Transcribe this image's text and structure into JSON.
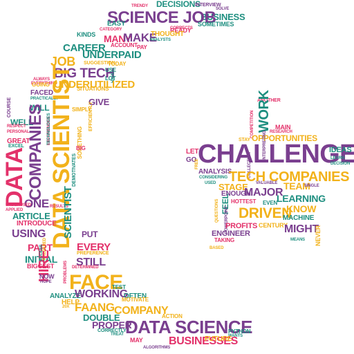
{
  "words": [
    {
      "t": "DECISIONS",
      "c": 3
    },
    {
      "t": "TRENDY",
      "c": 2
    },
    {
      "t": "INTERVIEW",
      "c": 0
    },
    {
      "t": "SOLVE",
      "c": 0
    },
    {
      "t": "BUSINESS",
      "c": 3
    },
    {
      "t": "SCIENCE JOB",
      "c": 0
    },
    {
      "t": "SOMETIMES",
      "c": 3
    },
    {
      "t": "EASY",
      "c": 3
    },
    {
      "t": "CATEGORY",
      "c": 2
    },
    {
      "t": "CORRECTS",
      "c": 2
    },
    {
      "t": "READY",
      "c": 2
    },
    {
      "t": "KINDS",
      "c": 3
    },
    {
      "t": "MANY",
      "c": 2
    },
    {
      "t": "MAKE",
      "c": 0
    },
    {
      "t": "THOUGHT",
      "c": 1
    },
    {
      "t": "ANALYSTS",
      "c": 3
    },
    {
      "t": "ACCOUNT",
      "c": 2
    },
    {
      "t": "PAY",
      "c": 2
    },
    {
      "t": "CAREER",
      "c": 3
    },
    {
      "t": "UNDERPAID",
      "c": 3
    },
    {
      "t": "JOB",
      "c": 1
    },
    {
      "t": "SUGGESTION",
      "c": 1
    },
    {
      "t": "TODAY",
      "c": 1
    },
    {
      "t": "BIG TECH",
      "c": 0
    },
    {
      "t": "USE",
      "c": 3
    },
    {
      "t": "HAVE",
      "c": 3
    },
    {
      "t": "ALWAYS",
      "c": 2
    },
    {
      "t": "EVERYTHING",
      "c": 2
    },
    {
      "t": "UNDERUTILIZED",
      "c": 1
    },
    {
      "t": "GOING",
      "c": 1
    },
    {
      "t": "LOT",
      "c": 3
    },
    {
      "t": "SITUATIONS",
      "c": 1
    },
    {
      "t": "FACED",
      "c": 0
    },
    {
      "t": "PRACTICALLY",
      "c": 3
    },
    {
      "t": "GIVE",
      "c": 0
    },
    {
      "t": "WILL",
      "c": 3
    },
    {
      "t": "SIMPLY",
      "c": 1
    },
    {
      "t": "COURSE",
      "c": 0
    },
    {
      "t": "WELL",
      "c": 3
    },
    {
      "t": "RESPECT",
      "c": 2
    },
    {
      "t": "PERSONAL",
      "c": 2
    },
    {
      "t": "EXPERIENCES",
      "c": 2
    },
    {
      "t": "TECHNOLOGIES",
      "c": 3
    },
    {
      "t": "DATA SCIENTIST",
      "c": 1
    },
    {
      "t": "EFFICIENTLY",
      "c": 1
    },
    {
      "t": "SOMETHING",
      "c": 1
    },
    {
      "t": "GREAT",
      "c": 2
    },
    {
      "t": "EXCEL",
      "c": 3
    },
    {
      "t": "BIG",
      "c": 2
    },
    {
      "t": "DATA",
      "c": 2
    },
    {
      "t": "COMPANIES",
      "c": 0
    },
    {
      "t": "DEMOTIVATES",
      "c": 3
    },
    {
      "t": "ONE",
      "c": 0
    },
    {
      "t": "UNDERUSED",
      "c": 2
    },
    {
      "t": "APPLIED",
      "c": 2
    },
    {
      "t": "RESULTS",
      "c": 2
    },
    {
      "t": "ARTICLE",
      "c": 3
    },
    {
      "t": "INTRODUCE",
      "c": 2
    },
    {
      "t": "SCIENTIST",
      "c": 3
    },
    {
      "t": "USING",
      "c": 0
    },
    {
      "t": "PUT",
      "c": 0
    },
    {
      "t": "PART",
      "c": 2
    },
    {
      "t": "EVERY",
      "c": 2
    },
    {
      "t": "INITIAL",
      "c": 3
    },
    {
      "t": "PREPARED",
      "c": 1
    },
    {
      "t": "HIRE",
      "c": 2
    },
    {
      "t": "PREFERENCE",
      "c": 1
    },
    {
      "t": "STILL",
      "c": 0
    },
    {
      "t": "BIGGEST",
      "c": 2
    },
    {
      "t": "NOW",
      "c": 0
    },
    {
      "t": "HOPE",
      "c": 0
    },
    {
      "t": "ACCESS",
      "c": 3
    },
    {
      "t": "PROBLEMS",
      "c": 2
    },
    {
      "t": "DETERMINED",
      "c": 2
    },
    {
      "t": "FACE",
      "c": 1
    },
    {
      "t": "TEST",
      "c": 3
    },
    {
      "t": "ANALYZE",
      "c": 3
    },
    {
      "t": "WORKING",
      "c": 0
    },
    {
      "t": "OFTEN",
      "c": 3
    },
    {
      "t": "HELP",
      "c": 1
    },
    {
      "t": "MOTIVATE",
      "c": 1
    },
    {
      "t": "20X",
      "c": 1
    },
    {
      "t": "FAANG",
      "c": 1
    },
    {
      "t": "COMPANY",
      "c": 1
    },
    {
      "t": "DOUBLE",
      "c": 3
    },
    {
      "t": "ACTION",
      "c": 1
    },
    {
      "t": "PROPER",
      "c": 0
    },
    {
      "t": "CORRECTLY",
      "c": 3
    },
    {
      "t": "TREAT",
      "c": 3
    },
    {
      "t": "DATA SCIENCE",
      "c": 0
    },
    {
      "t": "PYTHON",
      "c": 3
    },
    {
      "t": "WANTS",
      "c": 3
    },
    {
      "t": "MAY",
      "c": 2
    },
    {
      "t": "BUSINESSES",
      "c": 2
    },
    {
      "t": "FUTURE",
      "c": 1
    },
    {
      "t": "ALGORITHMS",
      "c": 0
    },
    {
      "t": "ANOTHER",
      "c": 2
    },
    {
      "t": "WORK",
      "c": 3
    },
    {
      "t": "MAIN",
      "c": 2
    },
    {
      "t": "RESEARCH",
      "c": 2
    },
    {
      "t": "COMPETITION",
      "c": 2
    },
    {
      "t": "OPPORTUNITIES",
      "c": 1
    },
    {
      "t": "STAY",
      "c": 1
    },
    {
      "t": "INTERPRETING",
      "c": 0
    },
    {
      "t": "COLLECTION",
      "c": 0
    },
    {
      "t": "CHALLENGE",
      "c": 0
    },
    {
      "t": "IDEAS",
      "c": 3
    },
    {
      "t": "LET",
      "c": 2
    },
    {
      "t": "GO",
      "c": 0
    },
    {
      "t": "FREE",
      "c": 1
    },
    {
      "t": "LEARN",
      "c": 3
    },
    {
      "t": "DECISION",
      "c": 3
    },
    {
      "t": "ANALYSIS",
      "c": 0
    },
    {
      "t": "TECH COMPANIES",
      "c": 1
    },
    {
      "t": "CONSIDERING",
      "c": 3
    },
    {
      "t": "TEAM",
      "c": 1
    },
    {
      "t": "USED",
      "c": 3
    },
    {
      "t": "VALUABLE",
      "c": 0
    },
    {
      "t": "SINGLE",
      "c": 0
    },
    {
      "t": "STAGE",
      "c": 1
    },
    {
      "t": "ENOUGH",
      "c": 0
    },
    {
      "t": "MAJOR",
      "c": 0
    },
    {
      "t": "LEARNING",
      "c": 3
    },
    {
      "t": "HOTTEST",
      "c": 2
    },
    {
      "t": "EVEN",
      "c": 3
    },
    {
      "t": "FEEL",
      "c": 3
    },
    {
      "t": "KNOW",
      "c": 1
    },
    {
      "t": "DRIVEN",
      "c": 1
    },
    {
      "t": "POWERPOINT",
      "c": 0
    },
    {
      "t": "MACHINE",
      "c": 3
    },
    {
      "t": "QUESTIONS",
      "c": 1
    },
    {
      "t": "PROFITS",
      "c": 2
    },
    {
      "t": "CENTURY",
      "c": 1
    },
    {
      "t": "MIGHT",
      "c": 0
    },
    {
      "t": "ENGINEER",
      "c": 0
    },
    {
      "t": "TAKING",
      "c": 2
    },
    {
      "t": "MEANS",
      "c": 3
    },
    {
      "t": "NEVER",
      "c": 1
    },
    {
      "t": "BASED",
      "c": 1
    }
  ],
  "palette": [
    "#7a3f8f",
    "#f2b21b",
    "#e3316a",
    "#1f8f80"
  ]
}
